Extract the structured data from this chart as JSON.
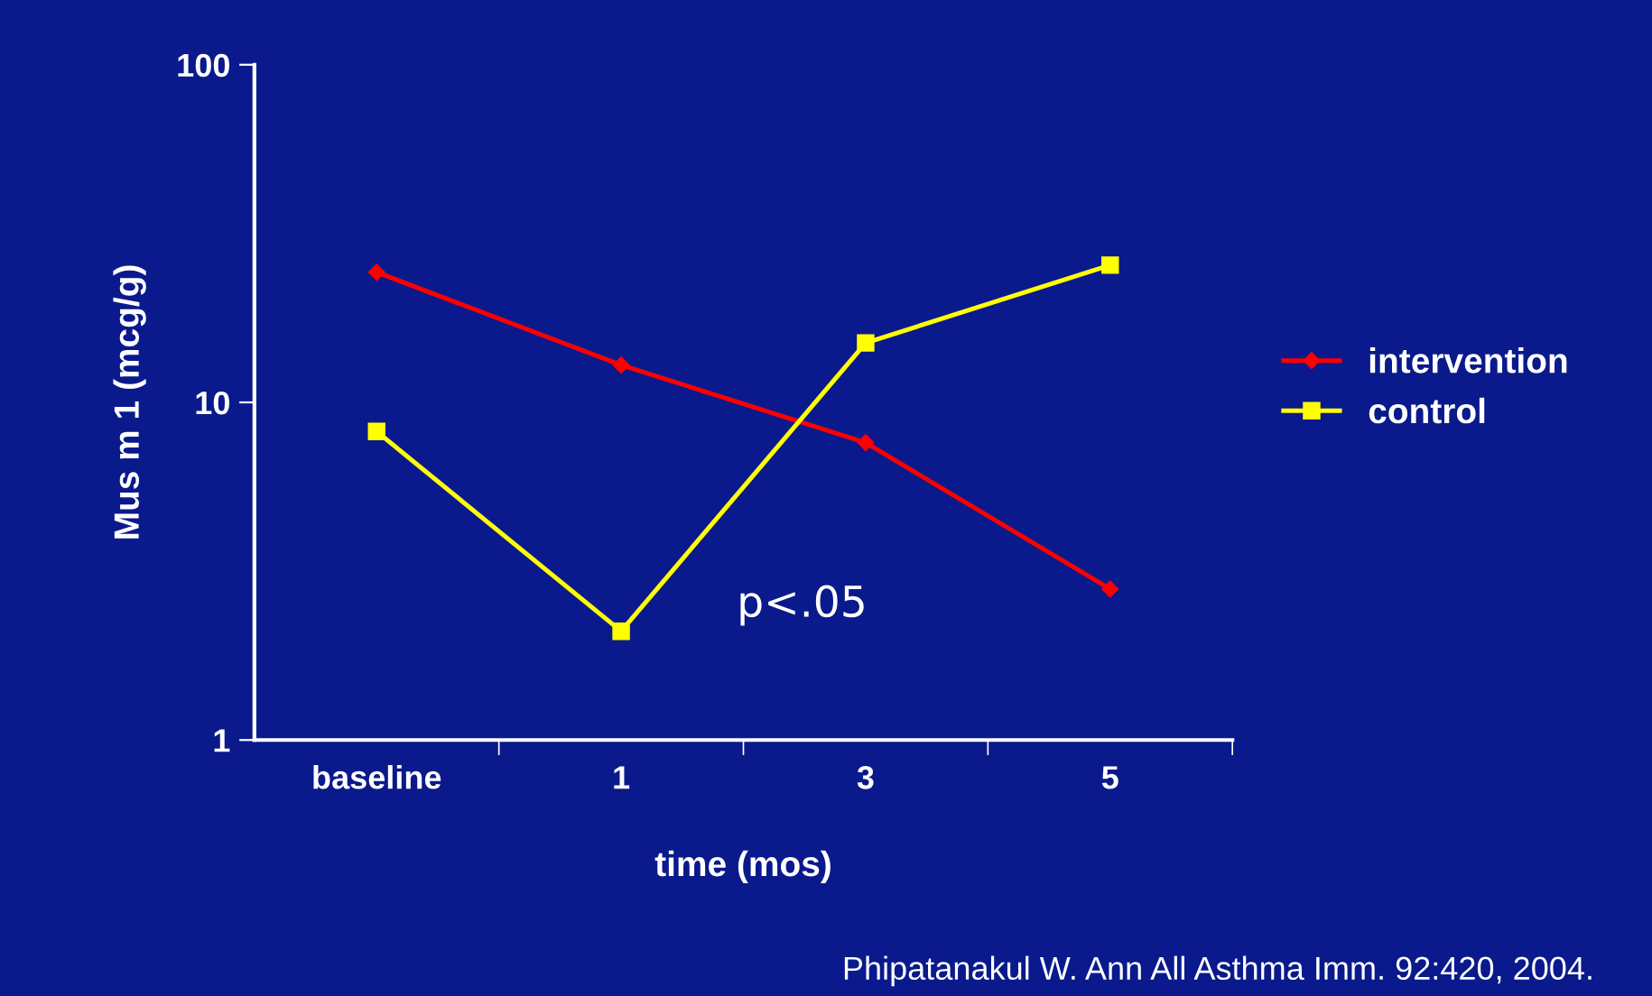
{
  "chart_data": {
    "type": "line",
    "xlabel": "time (mos)",
    "ylabel": "Mus m 1 (mcg/g)",
    "categories": [
      "baseline",
      "1",
      "3",
      "5"
    ],
    "series": [
      {
        "name": "intervention",
        "color": "#ff0000",
        "values": [
          24.3,
          12.9,
          7.6,
          2.8
        ],
        "marker": "diamond"
      },
      {
        "name": "control",
        "color": "#ffff00",
        "values": [
          8.2,
          2.1,
          15,
          25.5
        ],
        "marker": "square"
      }
    ],
    "log": "y",
    "ylim": [
      1,
      100
    ],
    "yticks": [
      1,
      10,
      100
    ],
    "grid": false,
    "legend": "right",
    "line_style": "solid",
    "annotations": [
      "p<.05",
      "Phipatanakul W. Ann All Asthma Imm. 92:420, 2004."
    ]
  }
}
